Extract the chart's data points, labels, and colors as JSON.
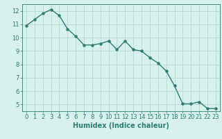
{
  "x": [
    0,
    1,
    2,
    3,
    4,
    5,
    6,
    7,
    8,
    9,
    10,
    11,
    12,
    13,
    14,
    15,
    16,
    17,
    18,
    19,
    20,
    21,
    22,
    23
  ],
  "y": [
    10.9,
    11.35,
    11.8,
    12.1,
    11.65,
    10.65,
    10.1,
    9.45,
    9.45,
    9.55,
    9.75,
    9.1,
    9.75,
    9.1,
    9.0,
    8.5,
    8.1,
    7.5,
    6.4,
    5.05,
    5.05,
    5.2,
    4.7,
    4.7
  ],
  "line_color": "#2e7d6e",
  "marker": "o",
  "markersize": 2.2,
  "linewidth": 1.0,
  "bg_color": "#d6f0ee",
  "grid_color": "#b8d8d4",
  "xlabel": "Humidex (Indice chaleur)",
  "xlabel_fontsize": 7,
  "tick_fontsize": 6,
  "xlim": [
    -0.5,
    23.5
  ],
  "ylim": [
    4.5,
    12.5
  ],
  "yticks": [
    5,
    6,
    7,
    8,
    9,
    10,
    11,
    12
  ],
  "xticks": [
    0,
    1,
    2,
    3,
    4,
    5,
    6,
    7,
    8,
    9,
    10,
    11,
    12,
    13,
    14,
    15,
    16,
    17,
    18,
    19,
    20,
    21,
    22,
    23
  ]
}
